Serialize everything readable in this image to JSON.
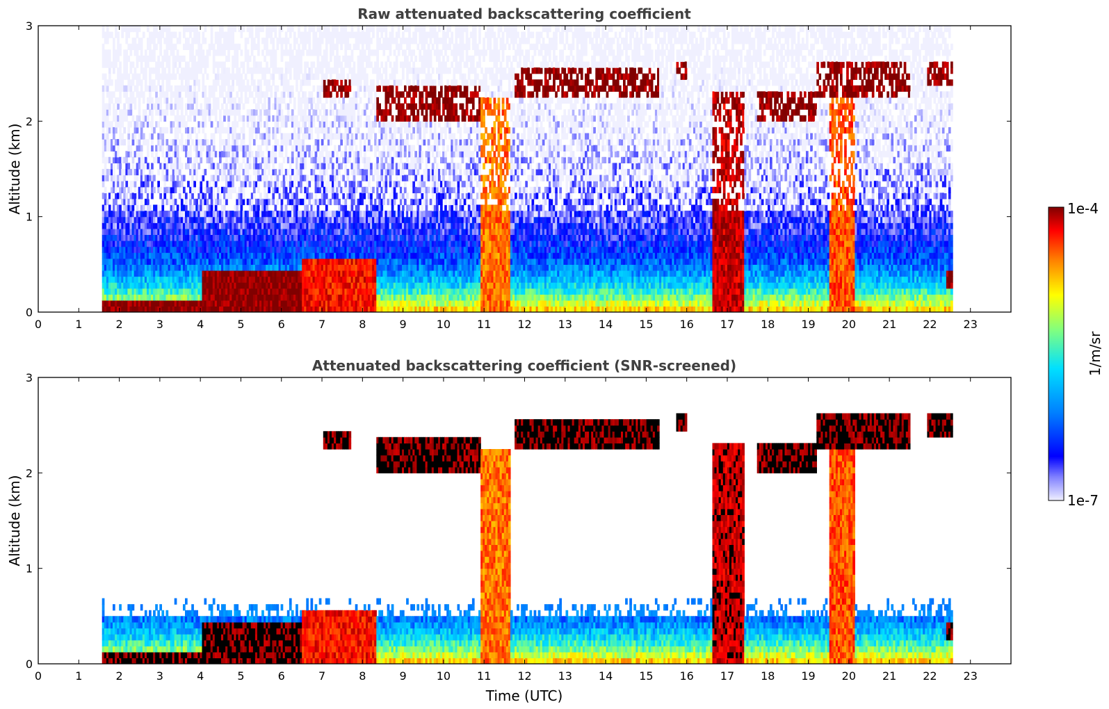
{
  "colors": {
    "background": "#ffffff",
    "title_text": "#404040",
    "axis_text": "#000000",
    "colormap": [
      "#f0f0ff",
      "#0000ff",
      "#0080ff",
      "#00e0ff",
      "#80ff80",
      "#ffff00",
      "#ff8000",
      "#ff0000",
      "#800000"
    ],
    "bad_data": "#000000"
  },
  "colorbar": {
    "label": "1/m/sr",
    "min_label": "1e-7",
    "max_label": "1e-4",
    "scale": "log",
    "range": [
      1e-07,
      0.0001
    ]
  },
  "chart_data": [
    {
      "type": "heatmap",
      "title": "Raw attenuated backscattering coefficient",
      "xlabel": "",
      "ylabel": "Altitude (km)",
      "xlim": [
        0,
        24
      ],
      "ylim": [
        0,
        3
      ],
      "xticks": [
        "0",
        "1",
        "2",
        "3",
        "4",
        "5",
        "6",
        "7",
        "8",
        "9",
        "10",
        "11",
        "12",
        "13",
        "14",
        "15",
        "16",
        "17",
        "18",
        "19",
        "20",
        "21",
        "22",
        "23"
      ],
      "yticks": [
        "0",
        "1",
        "2",
        "3"
      ],
      "data_start_utc": 1.55,
      "data_end_utc": 23.0,
      "value_scale": "log10 of 1/m/sr",
      "features": [
        {
          "kind": "surface_layer",
          "t_start": 1.55,
          "t_end": 4.0,
          "top_km": 0.12,
          "log10": -4.0
        },
        {
          "kind": "boundary_layer",
          "t_start": 4.0,
          "t_end": 6.5,
          "top_km": 0.4,
          "log10": -4.0
        },
        {
          "kind": "boundary_layer",
          "t_start": 6.5,
          "t_end": 8.3,
          "top_km": 0.55,
          "log10": -4.4
        },
        {
          "kind": "cloud_layer",
          "t_start": 7.0,
          "t_end": 7.7,
          "bottom_km": 2.25,
          "top_km": 2.38,
          "log10": -4.0
        },
        {
          "kind": "cloud_layer",
          "t_start": 8.3,
          "t_end": 10.9,
          "bottom_km": 2.0,
          "top_km": 2.35,
          "log10": -4.0
        },
        {
          "kind": "precip_column",
          "t_start": 10.9,
          "t_end": 11.6,
          "bottom_km": 0.0,
          "top_km": 2.2,
          "log10": -4.7
        },
        {
          "kind": "cloud_layer",
          "t_start": 11.7,
          "t_end": 15.3,
          "bottom_km": 2.2,
          "top_km": 2.5,
          "log10": -4.0
        },
        {
          "kind": "cloud_patch",
          "t_start": 15.7,
          "t_end": 16.0,
          "bottom_km": 2.4,
          "top_km": 2.6,
          "log10": -4.0
        },
        {
          "kind": "precip_column",
          "t_start": 16.6,
          "t_end": 17.4,
          "bottom_km": 0.0,
          "top_km": 2.3,
          "log10": -4.2
        },
        {
          "kind": "cloud_layer",
          "t_start": 17.7,
          "t_end": 19.2,
          "bottom_km": 2.0,
          "top_km": 2.3,
          "log10": -4.0
        },
        {
          "kind": "cloud_layer",
          "t_start": 19.2,
          "t_end": 21.5,
          "bottom_km": 2.2,
          "top_km": 2.6,
          "log10": -4.0
        },
        {
          "kind": "precip_column",
          "t_start": 19.5,
          "t_end": 20.1,
          "bottom_km": 0.0,
          "top_km": 2.2,
          "log10": -4.6
        },
        {
          "kind": "cloud_patch",
          "t_start": 21.9,
          "t_end": 22.6,
          "bottom_km": 2.35,
          "top_km": 2.6,
          "log10": -4.0
        },
        {
          "kind": "cloud_patch",
          "t_start": 22.4,
          "t_end": 23.0,
          "bottom_km": 0.2,
          "top_km": 0.4,
          "log10": -4.0
        }
      ]
    },
    {
      "type": "heatmap",
      "title": "Attenuated backscattering coefficient (SNR-screened)",
      "xlabel": "Time (UTC)",
      "ylabel": "Altitude (km)",
      "xlim": [
        0,
        24
      ],
      "ylim": [
        0,
        3
      ],
      "xticks": [
        "0",
        "1",
        "2",
        "3",
        "4",
        "5",
        "6",
        "7",
        "8",
        "9",
        "10",
        "11",
        "12",
        "13",
        "14",
        "15",
        "16",
        "17",
        "18",
        "19",
        "20",
        "21",
        "22",
        "23"
      ],
      "yticks": [
        "0",
        "1",
        "2",
        "3"
      ],
      "data_start_utc": 1.55,
      "data_end_utc": 23.0,
      "value_scale": "log10 of 1/m/sr",
      "screening": "low-SNR pixels removed (white); cloud cores shown black"
    }
  ]
}
